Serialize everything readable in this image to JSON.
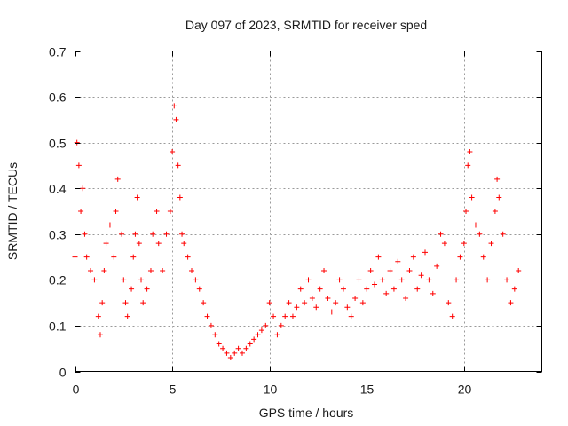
{
  "chart_data": {
    "type": "scatter",
    "title": "Day 097 of 2023, SRMTID for receiver sped",
    "xlabel": "GPS time / hours",
    "ylabel": "SRMTID / TECUs",
    "xlim": [
      0,
      24
    ],
    "ylim": [
      0,
      0.7
    ],
    "xticks": [
      0,
      5,
      10,
      15,
      20
    ],
    "xtick_labels": [
      "0",
      "5",
      "10",
      "15",
      "20"
    ],
    "yticks": [
      0,
      0.1,
      0.2,
      0.3,
      0.4,
      0.5,
      0.6,
      0.7
    ],
    "ytick_labels": [
      "0",
      "0.1",
      "0.2",
      "0.3",
      "0.4",
      "0.5",
      "0.6",
      "0.7"
    ],
    "grid": true,
    "marker": "+",
    "color": "#ff0000",
    "series": [
      {
        "name": "SRMTID",
        "x": [
          0.0,
          0.1,
          0.2,
          0.3,
          0.4,
          0.5,
          0.6,
          0.8,
          1.0,
          1.2,
          1.3,
          1.4,
          1.5,
          1.6,
          1.8,
          2.0,
          2.1,
          2.2,
          2.4,
          2.5,
          2.6,
          2.7,
          2.9,
          3.0,
          3.1,
          3.2,
          3.3,
          3.4,
          3.5,
          3.7,
          3.9,
          4.0,
          4.2,
          4.3,
          4.5,
          4.7,
          4.9,
          5.0,
          5.1,
          5.2,
          5.3,
          5.4,
          5.5,
          5.6,
          5.8,
          6.0,
          6.2,
          6.4,
          6.6,
          6.8,
          7.0,
          7.2,
          7.4,
          7.6,
          7.8,
          8.0,
          8.2,
          8.4,
          8.6,
          8.8,
          9.0,
          9.2,
          9.4,
          9.6,
          9.8,
          10.0,
          10.2,
          10.4,
          10.6,
          10.8,
          11.0,
          11.2,
          11.4,
          11.6,
          11.8,
          12.0,
          12.2,
          12.4,
          12.6,
          12.8,
          13.0,
          13.2,
          13.4,
          13.6,
          13.8,
          14.0,
          14.2,
          14.4,
          14.6,
          14.8,
          15.0,
          15.2,
          15.4,
          15.6,
          15.8,
          16.0,
          16.2,
          16.4,
          16.6,
          16.8,
          17.0,
          17.2,
          17.4,
          17.6,
          17.8,
          18.0,
          18.2,
          18.4,
          18.6,
          18.8,
          19.0,
          19.2,
          19.4,
          19.6,
          19.8,
          20.0,
          20.1,
          20.2,
          20.3,
          20.4,
          20.6,
          20.8,
          21.0,
          21.2,
          21.4,
          21.6,
          21.7,
          21.8,
          22.0,
          22.2,
          22.4,
          22.6,
          22.8
        ],
        "y": [
          0.25,
          0.5,
          0.45,
          0.35,
          0.4,
          0.3,
          0.25,
          0.22,
          0.2,
          0.12,
          0.08,
          0.15,
          0.22,
          0.28,
          0.32,
          0.25,
          0.35,
          0.42,
          0.3,
          0.2,
          0.15,
          0.12,
          0.18,
          0.25,
          0.3,
          0.38,
          0.28,
          0.2,
          0.15,
          0.18,
          0.22,
          0.3,
          0.35,
          0.28,
          0.22,
          0.3,
          0.35,
          0.48,
          0.58,
          0.55,
          0.45,
          0.38,
          0.3,
          0.28,
          0.25,
          0.22,
          0.2,
          0.18,
          0.15,
          0.12,
          0.1,
          0.08,
          0.06,
          0.05,
          0.04,
          0.03,
          0.04,
          0.05,
          0.04,
          0.05,
          0.06,
          0.07,
          0.08,
          0.09,
          0.1,
          0.15,
          0.12,
          0.08,
          0.1,
          0.12,
          0.15,
          0.12,
          0.14,
          0.18,
          0.15,
          0.2,
          0.16,
          0.14,
          0.18,
          0.22,
          0.16,
          0.13,
          0.15,
          0.2,
          0.18,
          0.14,
          0.12,
          0.16,
          0.2,
          0.15,
          0.18,
          0.22,
          0.19,
          0.25,
          0.2,
          0.17,
          0.22,
          0.18,
          0.24,
          0.2,
          0.16,
          0.22,
          0.25,
          0.18,
          0.21,
          0.26,
          0.2,
          0.17,
          0.23,
          0.3,
          0.28,
          0.15,
          0.12,
          0.2,
          0.25,
          0.28,
          0.35,
          0.45,
          0.48,
          0.38,
          0.32,
          0.3,
          0.25,
          0.2,
          0.28,
          0.35,
          0.42,
          0.38,
          0.3,
          0.2,
          0.15,
          0.18,
          0.22
        ]
      }
    ]
  }
}
